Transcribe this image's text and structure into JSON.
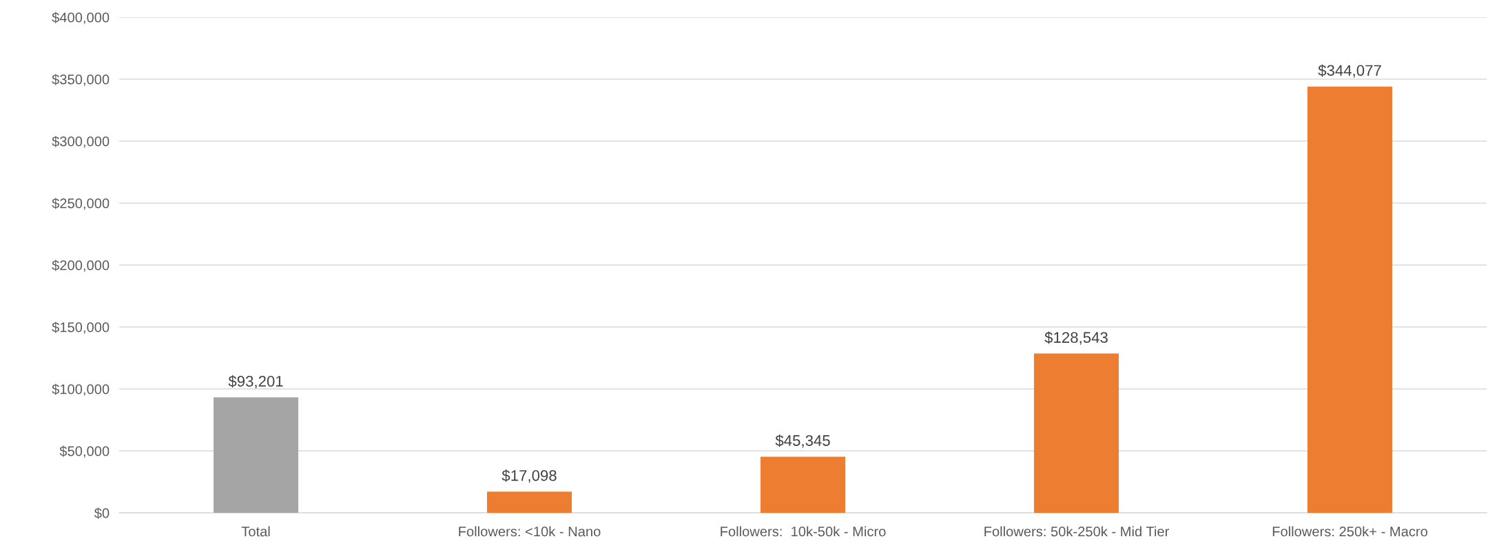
{
  "chart_data": {
    "type": "bar",
    "categories": [
      "Total",
      "Followers: <10k - Nano",
      "Followers:  10k-50k - Micro",
      "Followers: 50k-250k - Mid Tier",
      "Followers: 250k+ - Macro"
    ],
    "values": [
      93201,
      17098,
      45345,
      128543,
      344077
    ],
    "colors": [
      "#a5a5a5",
      "#ed7d31",
      "#ed7d31",
      "#ed7d31",
      "#ed7d31"
    ],
    "value_labels": [
      "$93,201",
      "$17,098",
      "$45,345",
      "$128,543",
      "$344,077"
    ],
    "ylim": [
      0,
      400000
    ],
    "yticks": [
      {
        "value": 0,
        "label": "$0"
      },
      {
        "value": 50000,
        "label": "$50,000"
      },
      {
        "value": 100000,
        "label": "$100,000"
      },
      {
        "value": 150000,
        "label": "$150,000"
      },
      {
        "value": 200000,
        "label": "$200,000"
      },
      {
        "value": 250000,
        "label": "$250,000"
      },
      {
        "value": 300000,
        "label": "$300,000"
      },
      {
        "value": 350000,
        "label": "$350,000"
      },
      {
        "value": 400000,
        "label": "$400,000"
      }
    ],
    "grid": "y",
    "legend": false
  }
}
